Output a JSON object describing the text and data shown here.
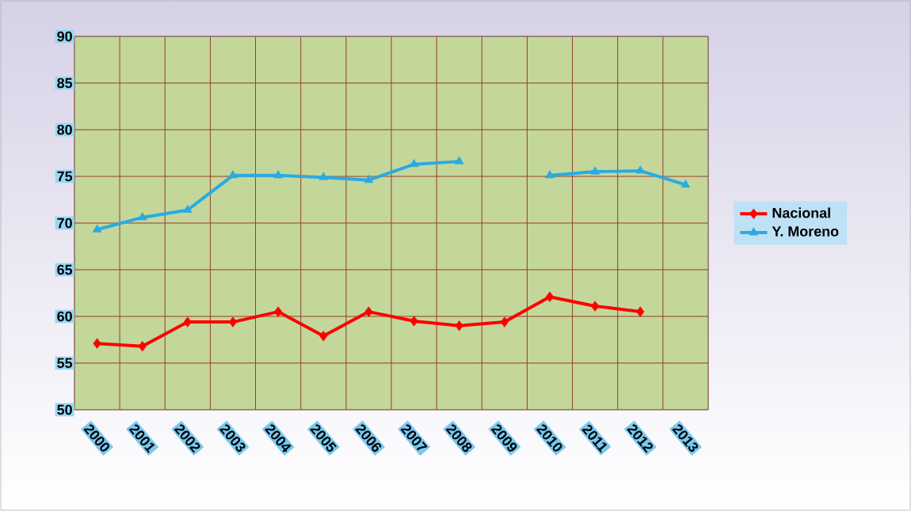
{
  "chart_data": {
    "type": "line",
    "categories": [
      "2000",
      "2001",
      "2002",
      "2003",
      "2004",
      "2005",
      "2006",
      "2007",
      "2008",
      "2009",
      "2010",
      "2011",
      "2012",
      "2013"
    ],
    "series": [
      {
        "name": "Nacional",
        "color": "#ff0000",
        "marker": "diamond",
        "values": [
          57.1,
          56.8,
          59.4,
          59.4,
          60.5,
          57.9,
          60.5,
          59.5,
          59.0,
          59.4,
          62.1,
          61.1,
          60.5,
          null
        ]
      },
      {
        "name": "Y. Moreno",
        "color": "#29abe2",
        "marker": "triangle",
        "values": [
          69.3,
          70.6,
          71.4,
          75.1,
          75.1,
          74.9,
          74.6,
          76.3,
          76.6,
          null,
          75.1,
          75.5,
          75.6,
          74.1
        ]
      }
    ],
    "ylim": [
      50,
      90
    ],
    "yticks": [
      50,
      55,
      60,
      65,
      70,
      75,
      80,
      85,
      90
    ],
    "grid": true,
    "legend": "right",
    "line_style": "solid"
  }
}
